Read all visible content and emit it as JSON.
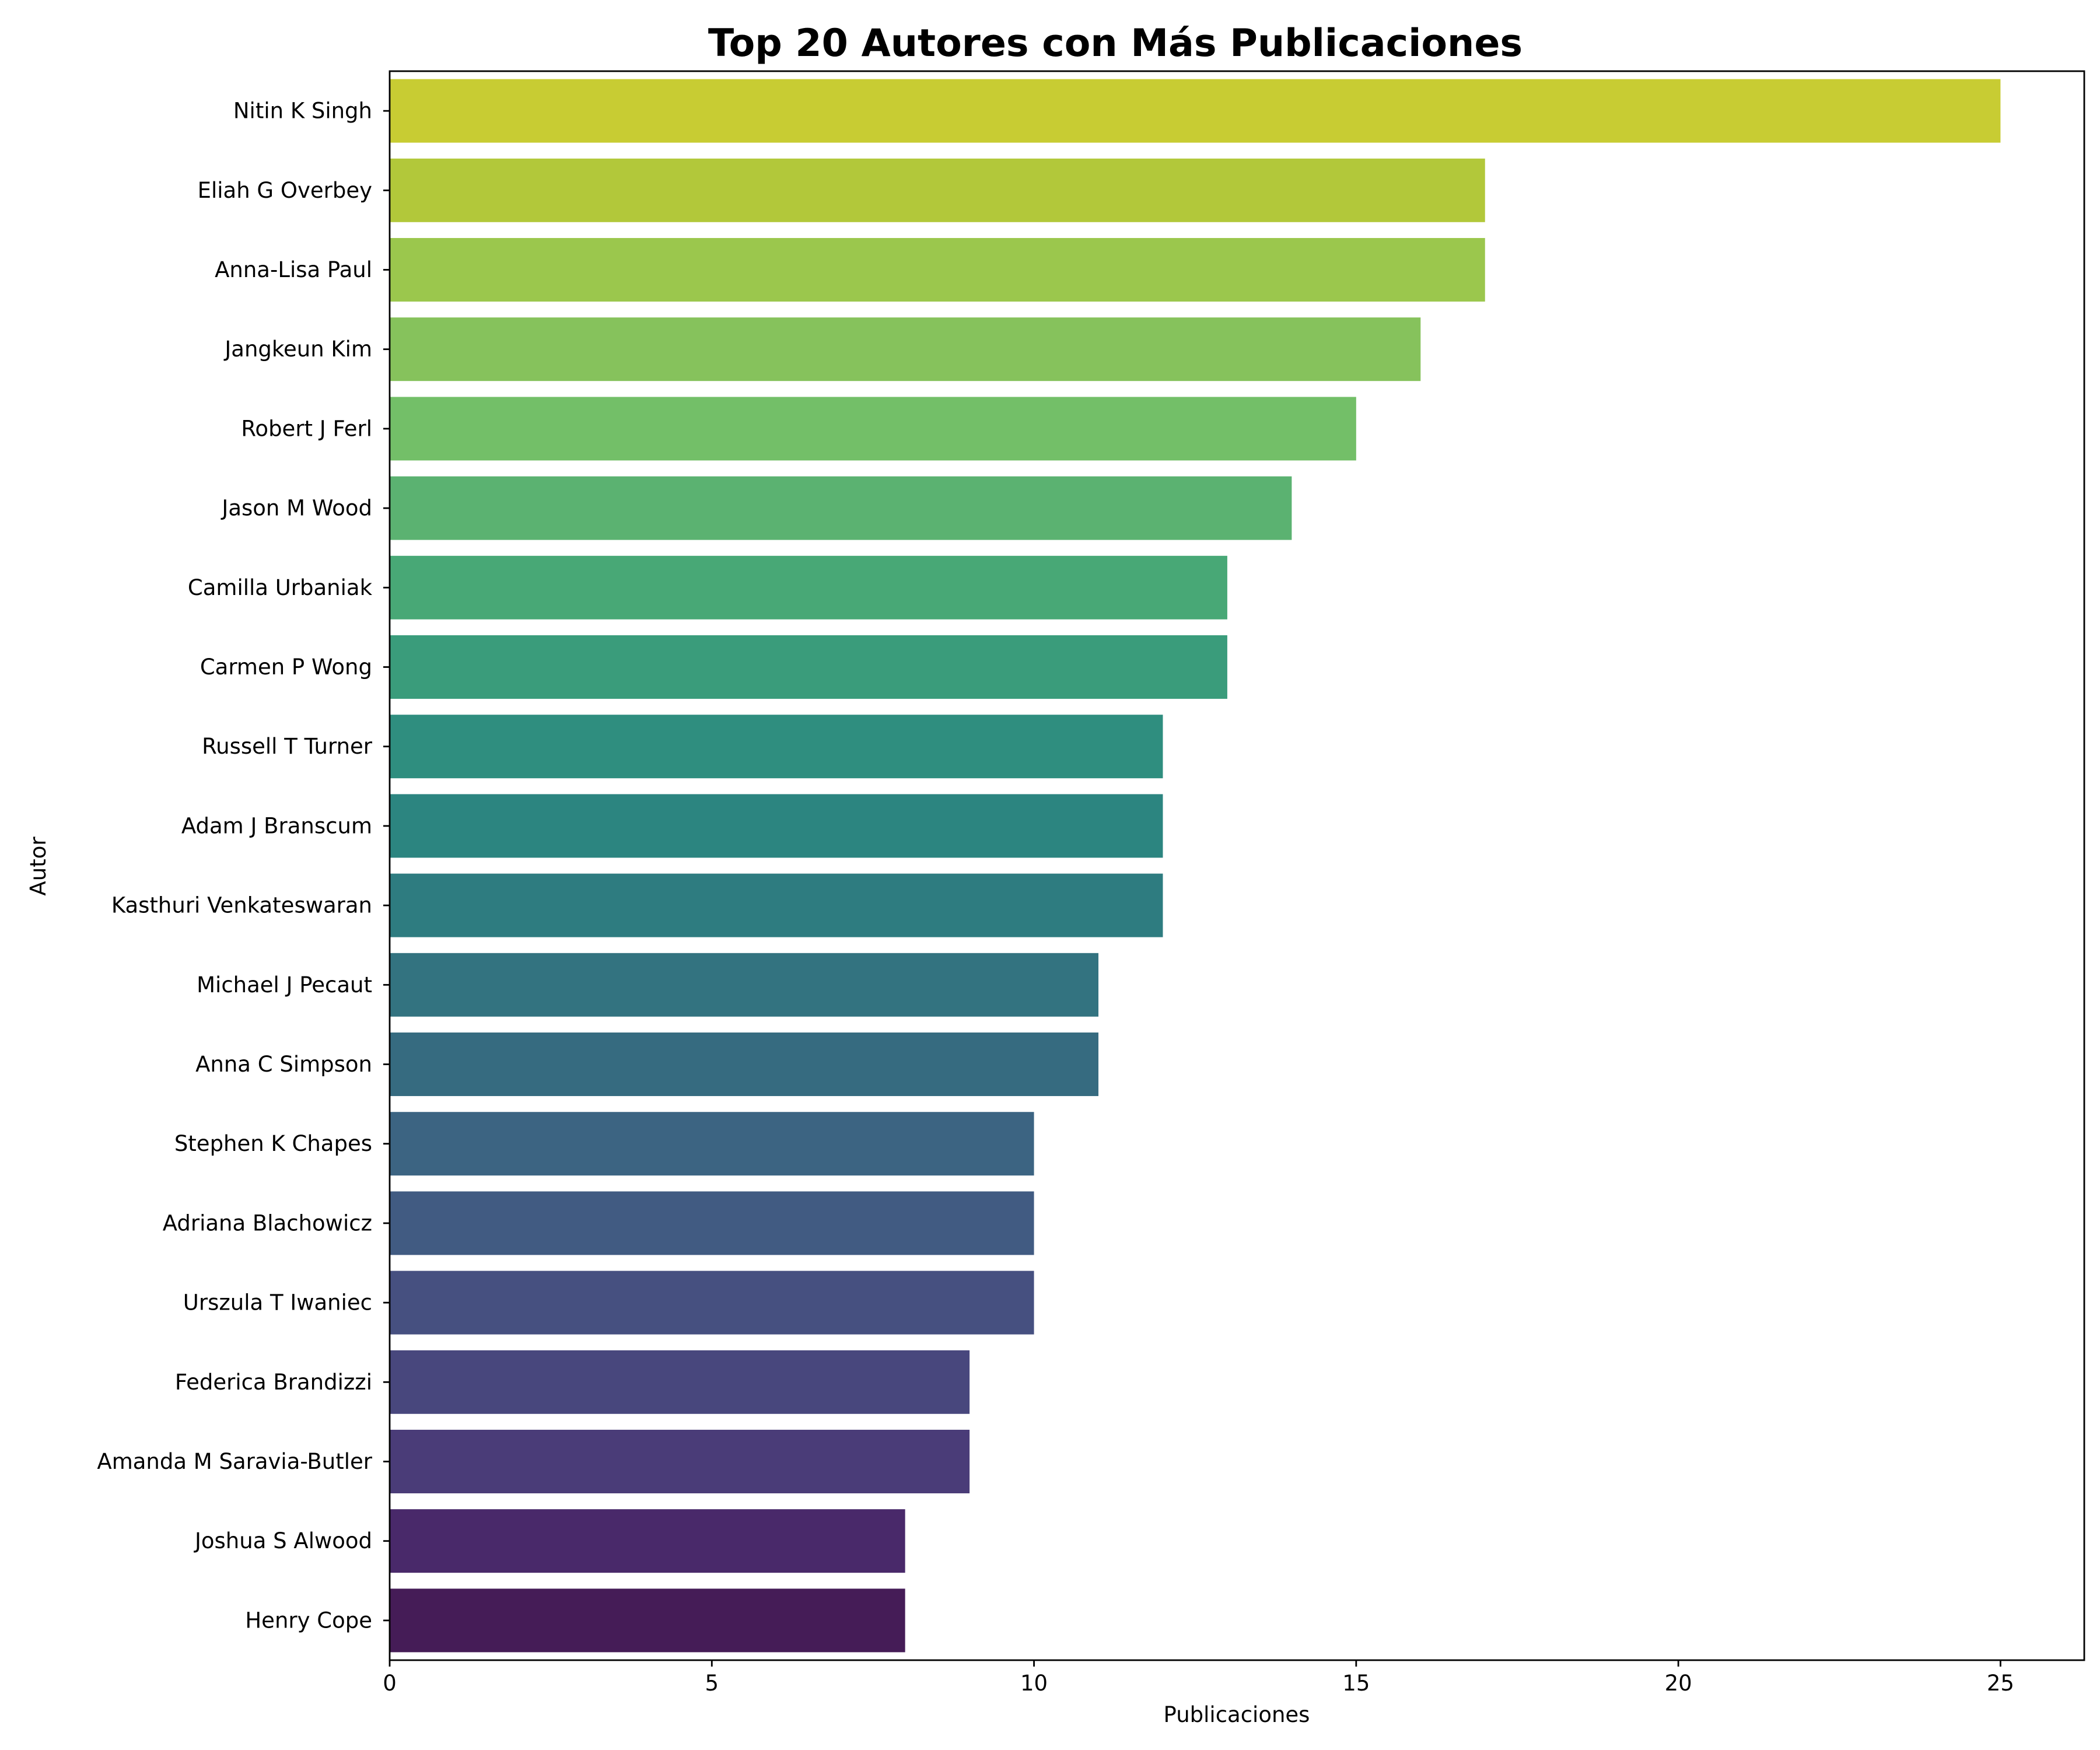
{
  "chart_data": {
    "type": "bar",
    "orientation": "horizontal",
    "title": "Top 20 Autores con Más Publicaciones",
    "xlabel": "Publicaciones",
    "ylabel": "Autor",
    "xlim": [
      0,
      26.3
    ],
    "xticks": [
      0,
      5,
      10,
      15,
      20,
      25
    ],
    "grid": false,
    "legend": "none",
    "categories": [
      "Nitin K Singh",
      "Eliah G Overbey",
      "Anna-Lisa Paul",
      "Jangkeun Kim",
      "Robert J Ferl",
      "Jason M Wood",
      "Camilla Urbaniak",
      "Carmen P Wong",
      "Russell T Turner",
      "Adam J Branscum",
      "Kasthuri Venkateswaran",
      "Michael J Pecaut",
      "Anna C Simpson",
      "Stephen K Chapes",
      "Adriana Blachowicz",
      "Urszula T Iwaniec",
      "Federica Brandizzi",
      "Amanda M Saravia-Butler",
      "Joshua S Alwood",
      "Henry Cope"
    ],
    "values": [
      25,
      17,
      17,
      16,
      15,
      14,
      13,
      13,
      12,
      12,
      12,
      11,
      11,
      10,
      10,
      10,
      9,
      9,
      8,
      8
    ],
    "colors": [
      "#c8cc33",
      "#b2c83a",
      "#9bc74d",
      "#86c25c",
      "#73bf68",
      "#5bb271",
      "#48a876",
      "#3a9c7b",
      "#2f8e7f",
      "#2c8580",
      "#2e7c80",
      "#337380",
      "#366b80",
      "#3c6482",
      "#415b82",
      "#465080",
      "#48477d",
      "#4a3c78",
      "#49296a",
      "#451c57"
    ]
  }
}
